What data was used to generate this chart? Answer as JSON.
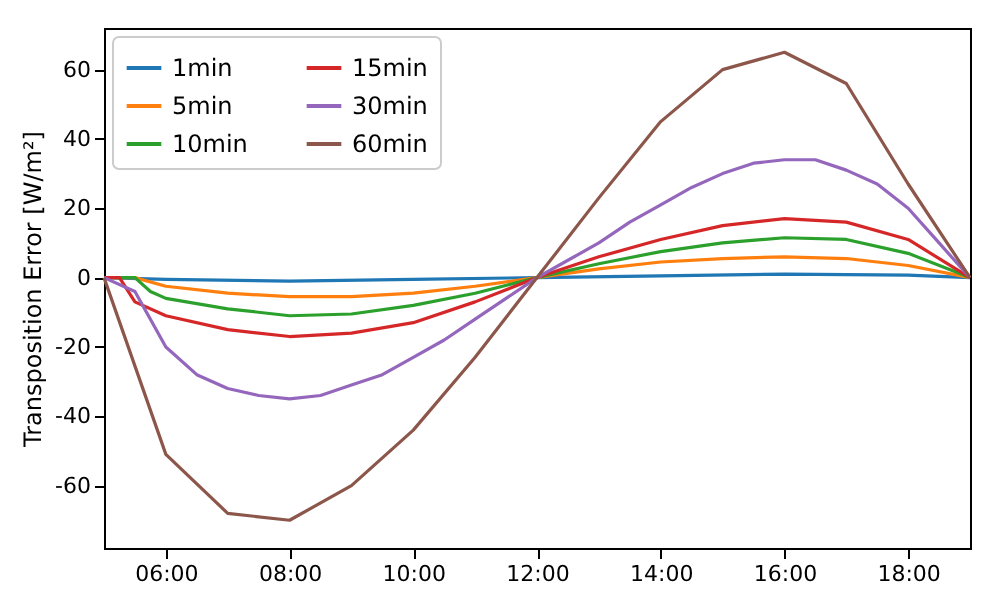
{
  "chart_data": {
    "type": "line",
    "ylabel": "Transposition Error [W/m²]",
    "xlim": [
      5,
      19
    ],
    "ylim": [
      -78,
      72
    ],
    "xticks": [
      {
        "value": 6,
        "label": "06:00"
      },
      {
        "value": 8,
        "label": "08:00"
      },
      {
        "value": 10,
        "label": "10:00"
      },
      {
        "value": 12,
        "label": "12:00"
      },
      {
        "value": 14,
        "label": "14:00"
      },
      {
        "value": 16,
        "label": "16:00"
      },
      {
        "value": 18,
        "label": "18:00"
      }
    ],
    "yticks": [
      -60,
      -40,
      -20,
      0,
      20,
      40,
      60
    ],
    "grid": false,
    "legend": "top left",
    "marker": "none",
    "line_style": "solid",
    "series": [
      {
        "name": "1min",
        "color": "#1f77b4",
        "x": [
          5,
          6,
          8,
          10,
          12,
          14,
          16,
          18,
          19
        ],
        "values": [
          0,
          -0.5,
          -1,
          -0.5,
          0,
          0.5,
          1,
          0.7,
          0
        ]
      },
      {
        "name": "5min",
        "color": "#ff7f0e",
        "x": [
          5,
          5.5,
          6,
          7,
          8,
          9,
          10,
          11,
          12,
          13,
          14,
          15,
          16,
          17,
          18,
          19
        ],
        "values": [
          0,
          0,
          -2.5,
          -4.5,
          -5.5,
          -5.5,
          -4.5,
          -2.5,
          0,
          2.5,
          4.5,
          5.5,
          6,
          5.5,
          3.5,
          0
        ]
      },
      {
        "name": "10min",
        "color": "#2ca02c",
        "x": [
          5,
          5.5,
          5.75,
          6,
          7,
          8,
          9,
          10,
          11,
          12,
          13,
          14,
          15,
          16,
          17,
          18,
          19
        ],
        "values": [
          0,
          0,
          -4,
          -6,
          -9,
          -11,
          -10.5,
          -8,
          -4.5,
          0,
          4,
          7.5,
          10,
          11.5,
          11,
          7,
          0
        ]
      },
      {
        "name": "15min",
        "color": "#d62728",
        "x": [
          5,
          5.25,
          5.5,
          6,
          7,
          8,
          9,
          10,
          11,
          12,
          13,
          14,
          15,
          16,
          17,
          18,
          19
        ],
        "values": [
          0,
          0,
          -7,
          -11,
          -15,
          -17,
          -16,
          -13,
          -7,
          0,
          6,
          11,
          15,
          17,
          16,
          11,
          0
        ]
      },
      {
        "name": "30min",
        "color": "#9467bd",
        "x": [
          5,
          5.5,
          6,
          6.5,
          7,
          7.5,
          8,
          8.5,
          9,
          9.5,
          10,
          10.5,
          11,
          11.5,
          12,
          12.5,
          13,
          13.5,
          14,
          14.5,
          15,
          15.5,
          16,
          16.5,
          17,
          17.5,
          18,
          18.5,
          19
        ],
        "values": [
          0,
          -4,
          -20,
          -28,
          -32,
          -34,
          -35,
          -34,
          -31,
          -28,
          -23,
          -18,
          -12,
          -6,
          0,
          5,
          10,
          16,
          21,
          26,
          30,
          33,
          34,
          34,
          31,
          27,
          20,
          10,
          0
        ]
      },
      {
        "name": "60min",
        "color": "#8c564b",
        "x": [
          5,
          6,
          7,
          8,
          9,
          10,
          11,
          12,
          13,
          14,
          15,
          16,
          17,
          18,
          19
        ],
        "values": [
          0,
          -51,
          -68,
          -70,
          -60,
          -44,
          -23,
          0,
          23,
          45,
          60,
          65,
          56,
          27,
          0
        ]
      }
    ]
  }
}
